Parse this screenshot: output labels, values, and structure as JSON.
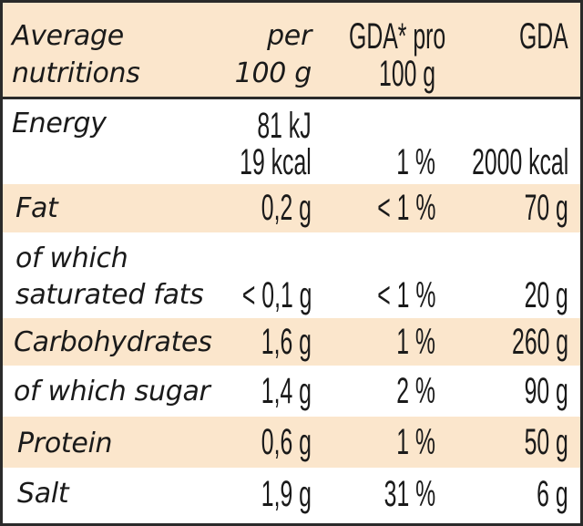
{
  "header": {
    "col0_line1": "Average",
    "col0_line2": "nutritions",
    "col1_line1": "per",
    "col1_line2": "100 g",
    "col2_line1": "GDA* pro",
    "col2_line2": "100 g",
    "col3_line1": "GDA"
  },
  "rows": [
    {
      "label": "Energy",
      "per100_kj": "81 kJ",
      "per100": "19 kcal",
      "gda_pct": "1 %",
      "gda": "2000 kcal"
    },
    {
      "label": "Fat",
      "per100": "0,2 g",
      "gda_pct": "< 1 %",
      "gda": "70 g"
    },
    {
      "label_line1": "of which",
      "label_line2": "saturated fats",
      "per100": "< 0,1 g",
      "gda_pct": "< 1 %",
      "gda": "20 g"
    },
    {
      "label": "Carbohydrates",
      "per100": "1,6 g",
      "gda_pct": "1 %",
      "gda": "260 g"
    },
    {
      "label": "of which sugar",
      "per100": "1,4 g",
      "gda_pct": "2 %",
      "gda": "90 g"
    },
    {
      "label": "Protein",
      "per100": "0,6 g",
      "gda_pct": "1 %",
      "gda": "50 g"
    },
    {
      "label": "Salt",
      "per100": "1,9 g",
      "gda_pct": "31 %",
      "gda": "6 g"
    }
  ],
  "colors": {
    "shade": "#fbe6cc",
    "border": "#2a2a2a"
  }
}
